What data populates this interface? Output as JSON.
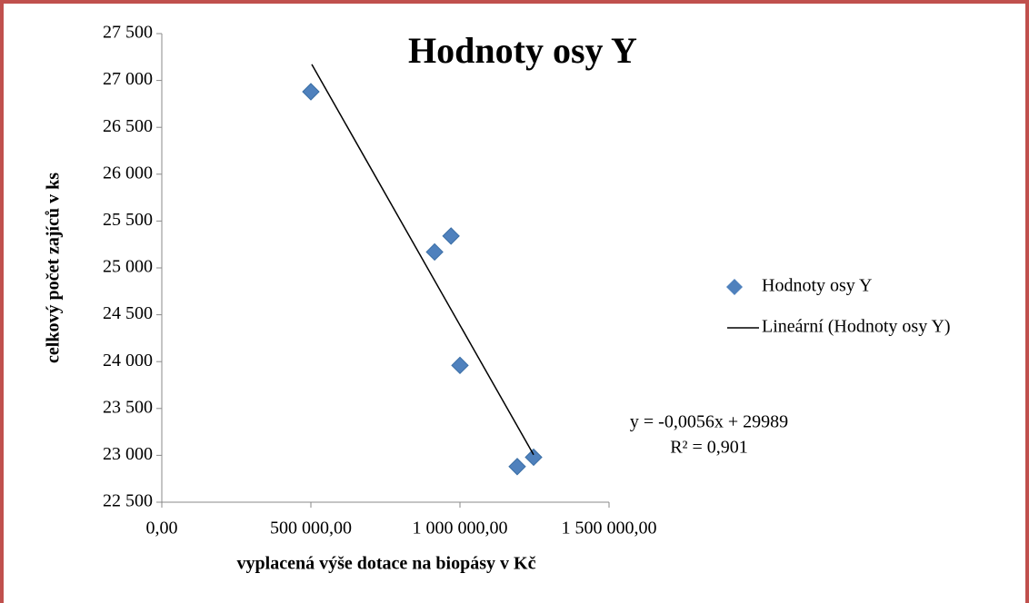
{
  "chart_data": {
    "type": "scatter",
    "title": "Hodnoty osy Y",
    "x_label": "vyplacená výše dotace na biopásy v Kč",
    "y_label": "celkový počet zajíců v ks",
    "series": [
      {
        "name": "Hodnoty osy Y",
        "type": "scatter",
        "color": "#4f81bd",
        "x": [
          500000,
          915000,
          970000,
          1000000,
          1192000,
          1247000
        ],
        "values": [
          26880,
          25170,
          25340,
          23960,
          22880,
          22980
        ]
      },
      {
        "name": "Lineární (Hodnoty osy Y)",
        "type": "line",
        "color": "#000000",
        "x": [
          503000,
          1247000
        ],
        "values": [
          27172,
          23006
        ]
      }
    ],
    "annotations": [
      "y = -0,0056x + 29989",
      "R² = 0,901"
    ],
    "xlim": [
      0,
      1500000
    ],
    "xticks": [
      {
        "value": 0,
        "label": "0,00"
      },
      {
        "value": 500000,
        "label": "500 000,00"
      },
      {
        "value": 1000000,
        "label": "1 000 000,00"
      },
      {
        "value": 1500000,
        "label": "1 500 000,00"
      }
    ],
    "ylim": [
      22500,
      27500
    ],
    "yticks": [
      {
        "value": 22500,
        "label": "22 500"
      },
      {
        "value": 23000,
        "label": "23 000"
      },
      {
        "value": 23500,
        "label": "23 500"
      },
      {
        "value": 24000,
        "label": "24 000"
      },
      {
        "value": 24500,
        "label": "24 500"
      },
      {
        "value": 25000,
        "label": "25 000"
      },
      {
        "value": 25500,
        "label": "25 500"
      },
      {
        "value": 26000,
        "label": "26 000"
      },
      {
        "value": 26500,
        "label": "26 500"
      },
      {
        "value": 27000,
        "label": "27 000"
      },
      {
        "value": 27500,
        "label": "27 500"
      }
    ],
    "legend": "right"
  }
}
